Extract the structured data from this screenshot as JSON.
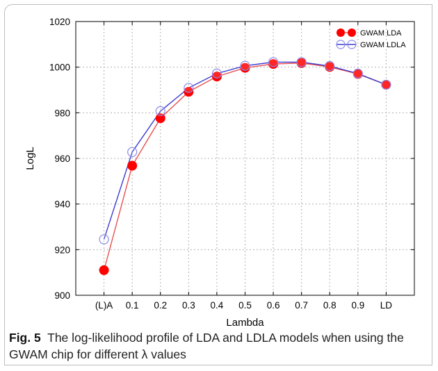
{
  "chart_data": {
    "type": "line",
    "title": "",
    "xlabel": "Lambda",
    "ylabel": "LogL",
    "categories": [
      "(L)A",
      "0.1",
      "0.2",
      "0.3",
      "0.4",
      "0.5",
      "0.6",
      "0.7",
      "0.8",
      "0.9",
      "LD"
    ],
    "ylim": [
      900,
      1020
    ],
    "yticks": [
      "900",
      "920",
      "940",
      "960",
      "980",
      "1000",
      "1020"
    ],
    "grid": true,
    "legend_position": "top-right",
    "series": [
      {
        "name": "GWAM LDA",
        "color": "#ff0000",
        "line_color": "#e85050",
        "marker": "filled-circle",
        "values": [
          911.0,
          956.8,
          977.6,
          989.2,
          995.9,
          999.7,
          1001.4,
          1001.8,
          1000.1,
          997.0,
          992.3
        ]
      },
      {
        "name": "GWAM LDLA",
        "color": "#3a3ad0",
        "line_color": "#3a3ad0",
        "marker": "open-circle",
        "values": [
          924.5,
          962.8,
          980.7,
          990.9,
          997.2,
          1000.6,
          1002.2,
          1002.2,
          1000.5,
          997.2,
          992.3
        ]
      }
    ]
  },
  "caption": {
    "label": "Fig. 5",
    "text": "The log-likelihood profile of LDA and LDLA models when using the GWAM chip for different λ values"
  }
}
